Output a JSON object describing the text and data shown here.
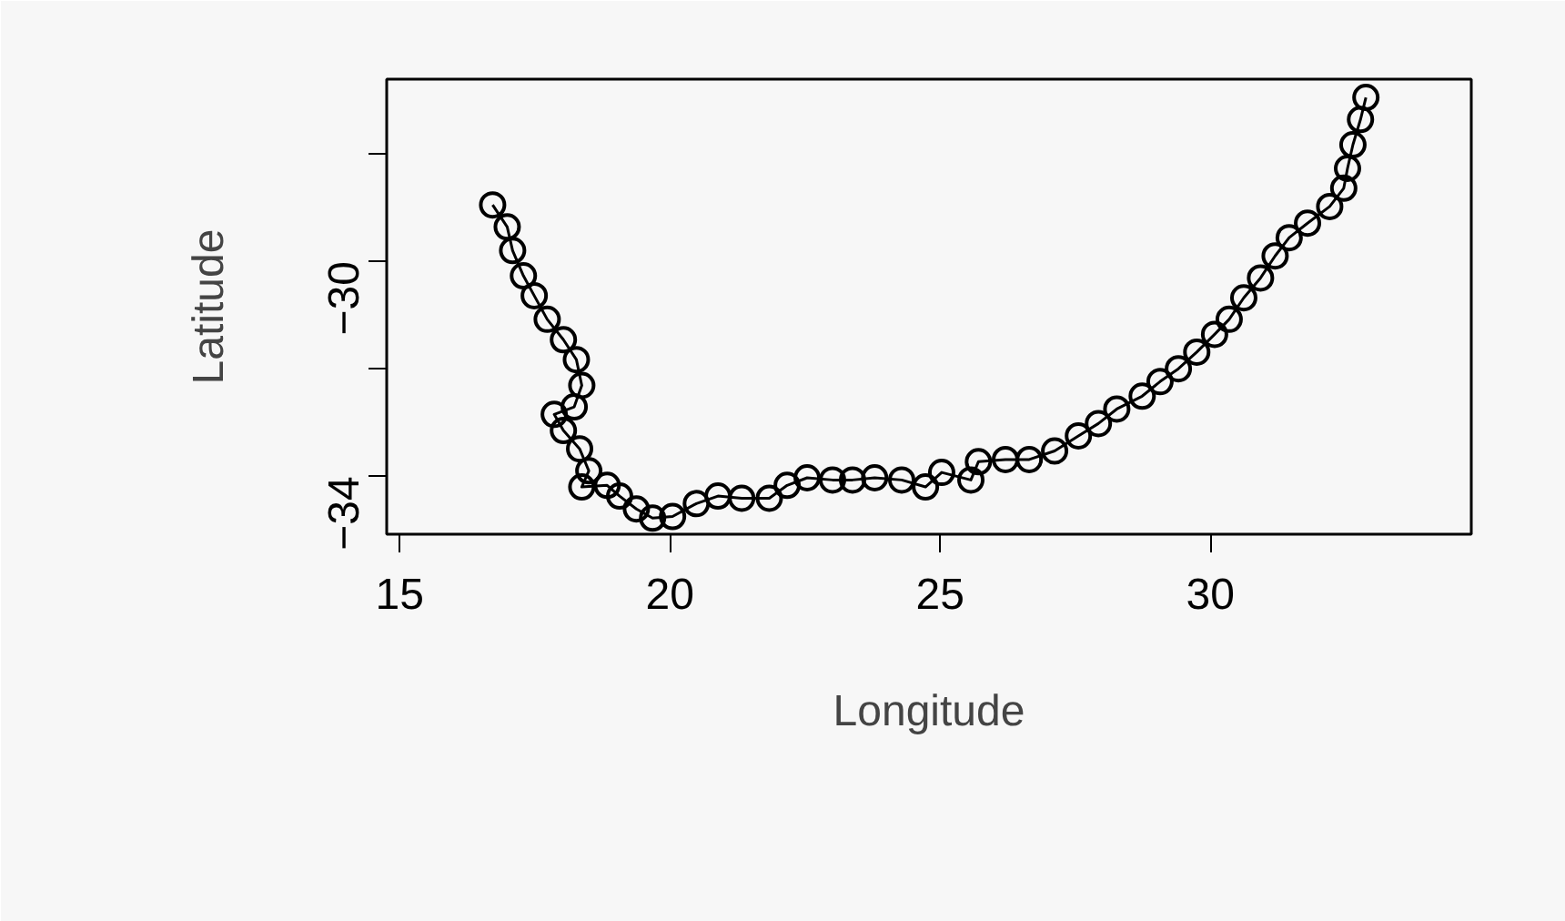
{
  "chart_data": {
    "type": "line",
    "xlabel": "Longitude",
    "ylabel": "Latitude",
    "marker": "circle",
    "line_style": "solid",
    "xlim": [
      14.76,
      34.83
    ],
    "ylim": [
      -35.08,
      -26.61
    ],
    "xticks": [
      15,
      20,
      25,
      30
    ],
    "yticks": [
      -34,
      {
        "value": -32,
        "label": null
      },
      -30,
      {
        "value": -28,
        "label": null
      }
    ],
    "x": [
      16.72,
      16.99,
      17.09,
      17.29,
      17.49,
      17.73,
      18.03,
      18.27,
      18.37,
      18.23,
      17.86,
      18.03,
      18.33,
      18.5,
      18.37,
      18.84,
      19.07,
      19.38,
      19.68,
      20.05,
      20.49,
      20.89,
      21.33,
      21.84,
      22.17,
      22.54,
      23.01,
      23.38,
      23.79,
      24.29,
      24.73,
      25.03,
      25.57,
      25.71,
      26.21,
      26.65,
      27.12,
      27.56,
      27.93,
      28.27,
      28.74,
      29.07,
      29.41,
      29.75,
      30.08,
      30.35,
      30.62,
      30.93,
      31.2,
      31.46,
      31.8,
      32.21,
      32.47,
      32.54,
      32.64,
      32.78,
      32.88
    ],
    "series": [
      {
        "color": "#000000",
        "values": [
          -28.95,
          -29.36,
          -29.8,
          -30.27,
          -30.64,
          -31.08,
          -31.46,
          -31.83,
          -32.31,
          -32.71,
          -32.85,
          -33.15,
          -33.49,
          -33.9,
          -34.2,
          -34.17,
          -34.37,
          -34.61,
          -34.78,
          -34.75,
          -34.51,
          -34.37,
          -34.41,
          -34.41,
          -34.17,
          -34.03,
          -34.07,
          -34.07,
          -34.03,
          -34.07,
          -34.2,
          -33.93,
          -34.07,
          -33.73,
          -33.69,
          -33.69,
          -33.53,
          -33.25,
          -33.02,
          -32.75,
          -32.51,
          -32.24,
          -32.0,
          -31.69,
          -31.36,
          -31.08,
          -30.68,
          -30.31,
          -29.9,
          -29.56,
          -29.29,
          -28.98,
          -28.64,
          -28.27,
          -27.83,
          -27.36,
          -26.95
        ]
      }
    ]
  }
}
